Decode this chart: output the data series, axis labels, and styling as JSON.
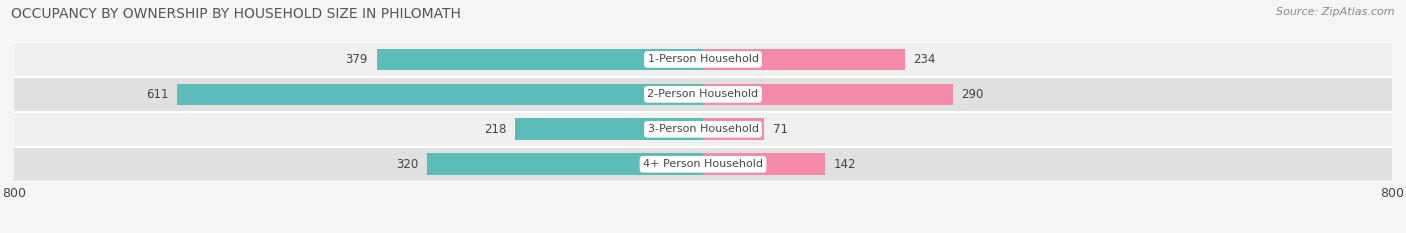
{
  "title": "OCCUPANCY BY OWNERSHIP BY HOUSEHOLD SIZE IN PHILOMATH",
  "source": "Source: ZipAtlas.com",
  "categories": [
    "1-Person Household",
    "2-Person Household",
    "3-Person Household",
    "4+ Person Household"
  ],
  "owner_values": [
    379,
    611,
    218,
    320
  ],
  "renter_values": [
    234,
    290,
    71,
    142
  ],
  "owner_color": "#5bbcb8",
  "renter_color": "#f48aaa",
  "axis_limit": 800,
  "bar_height": 0.62,
  "row_bg_colors": [
    "#f0f0f0",
    "#e0e0e0"
  ],
  "label_color": "#444444",
  "title_fontsize": 10,
  "source_fontsize": 8,
  "tick_fontsize": 9,
  "legend_fontsize": 9,
  "value_fontsize": 8.5,
  "category_fontsize": 8
}
